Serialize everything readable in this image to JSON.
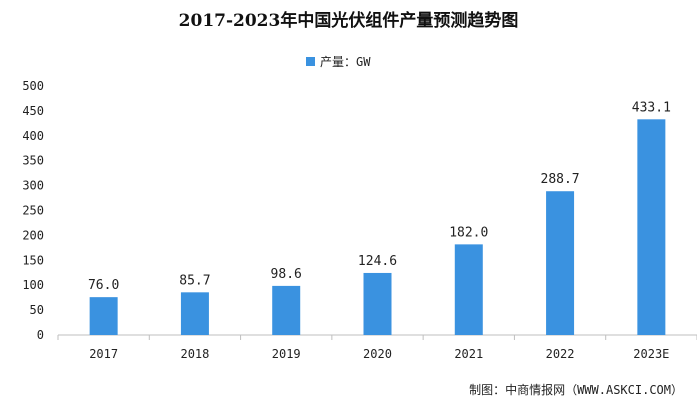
{
  "chart_data": {
    "type": "bar",
    "title": "2017-2023年中国光伏组件产量预测趋势图",
    "categories": [
      "2017",
      "2018",
      "2019",
      "2020",
      "2021",
      "2022",
      "2023E"
    ],
    "series": [
      {
        "name": "产量：GW",
        "values": [
          76.0,
          85.7,
          98.6,
          124.6,
          182.0,
          288.7,
          433.1
        ]
      }
    ],
    "data_labels": [
      "76.0",
      "85.7",
      "98.6",
      "124.6",
      "182.0",
      "288.7",
      "433.1"
    ],
    "ylim": [
      0,
      500
    ],
    "yticks": [
      0,
      50,
      100,
      150,
      200,
      250,
      300,
      350,
      400,
      450,
      500
    ],
    "grid": false,
    "legend_position": "top-center",
    "bar_color": "#3a92e0"
  },
  "source": "制图：中商情报网（WWW.ASKCI.COM）"
}
